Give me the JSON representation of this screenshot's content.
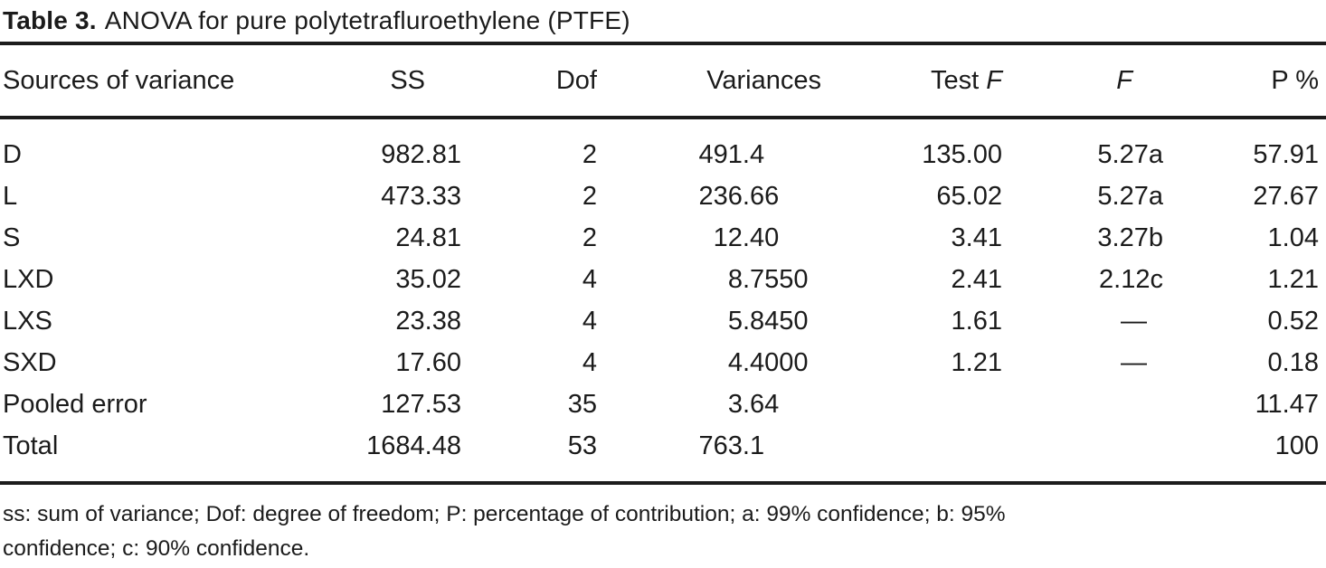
{
  "title": {
    "label": "Table 3.",
    "caption": "ANOVA for pure polytetrafluroethylene (PTFE)"
  },
  "table": {
    "columns": [
      {
        "key": "source",
        "label": "Sources of variance"
      },
      {
        "key": "ss",
        "label": "SS"
      },
      {
        "key": "dof",
        "label": "Dof"
      },
      {
        "key": "variances",
        "label": "Variances"
      },
      {
        "key": "test-f",
        "label": "Test",
        "italic": "F"
      },
      {
        "key": "f",
        "label": "",
        "italic": "F"
      },
      {
        "key": "p",
        "label": "P %"
      }
    ],
    "rows": [
      [
        "D",
        "982.81",
        "2",
        "491.4",
        "135.00",
        "5.27a",
        "57.91"
      ],
      [
        "L",
        "473.33",
        "2",
        "236.66",
        "65.02",
        "5.27a",
        "27.67"
      ],
      [
        "S",
        "24.81",
        "2",
        "12.40",
        "3.41",
        "3.27b",
        "1.04"
      ],
      [
        "LXD",
        "35.02",
        "4",
        "8.7550",
        "2.41",
        "2.12c",
        "1.21"
      ],
      [
        "LXS",
        "23.38",
        "4",
        "5.8450",
        "1.61",
        "—",
        "0.52"
      ],
      [
        "SXD",
        "17.60",
        "4",
        "4.4000",
        "1.21",
        "—",
        "0.18"
      ],
      [
        "Pooled error",
        "127.53",
        "35",
        "3.64",
        "",
        "",
        "11.47"
      ],
      [
        "Total",
        "1684.48",
        "53",
        "763.1",
        "",
        "",
        "100"
      ]
    ]
  },
  "footnote": {
    "line1": "ss: sum of variance; Dof: degree of freedom; P: percentage of contribution; a: 99% confidence; b: 95%",
    "line2": "confidence; c: 90% confidence."
  },
  "colors": {
    "text": "#1b1b1b",
    "rule": "#1c1c1c",
    "background": "#ffffff"
  }
}
